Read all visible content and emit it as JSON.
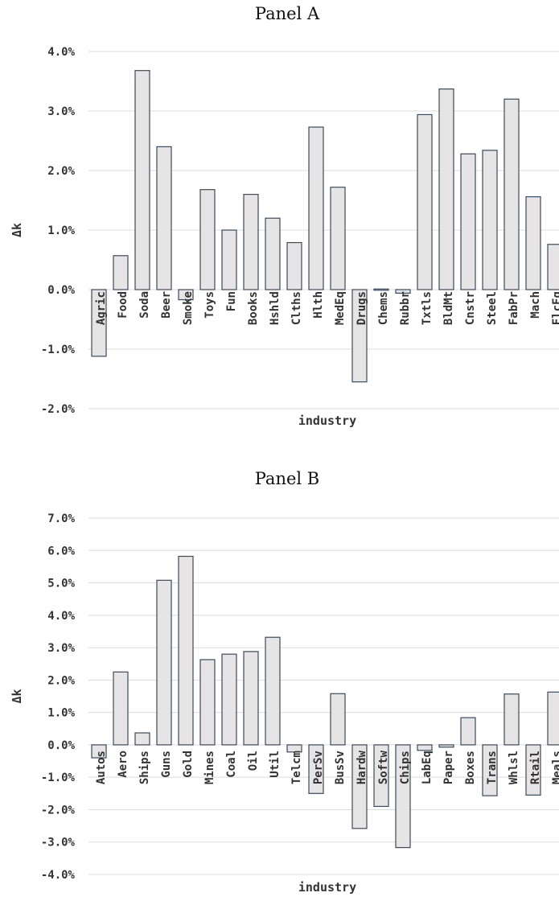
{
  "chart_data": [
    {
      "type": "bar",
      "title": "Panel A",
      "xlabel": "industry",
      "ylabel": "Δk",
      "ylim": [
        -2.0,
        4.0
      ],
      "yticks": [
        "4.0%",
        "3.0%",
        "2.0%",
        "1.0%",
        "0.0%",
        "-1.0%",
        "-2.0%"
      ],
      "grid": true,
      "categories": [
        "Agric",
        "Food",
        "Soda",
        "Beer",
        "Smoke",
        "Toys",
        "Fun",
        "Books",
        "Hshld",
        "Clths",
        "Hlth",
        "MedEq",
        "Drugs",
        "Chems",
        "Rubbr",
        "Txtls",
        "BldMt",
        "Cnstr",
        "Steel",
        "FabPr",
        "Mach",
        "ElcEq"
      ],
      "values": [
        -1.12,
        0.57,
        3.68,
        2.4,
        -0.17,
        1.68,
        1.0,
        1.6,
        1.2,
        0.79,
        2.73,
        1.72,
        -1.55,
        0.01,
        -0.06,
        2.94,
        3.37,
        2.28,
        2.34,
        3.2,
        1.56,
        0.76
      ]
    },
    {
      "type": "bar",
      "title": "Panel B",
      "xlabel": "industry",
      "ylabel": "Δk",
      "ylim": [
        -4.0,
        7.0
      ],
      "yticks": [
        "7.0%",
        "6.0%",
        "5.0%",
        "4.0%",
        "3.0%",
        "2.0%",
        "1.0%",
        "0.0%",
        "-1.0%",
        "-2.0%",
        "-3.0%",
        "-4.0%"
      ],
      "grid": true,
      "categories": [
        "Autos",
        "Aero",
        "Ships",
        "Guns",
        "Gold",
        "Mines",
        "Coal",
        "Oil",
        "Util",
        "Telcm",
        "PerSv",
        "BusSv",
        "Hardw",
        "Softw",
        "Chips",
        "LabEq",
        "Paper",
        "Boxes",
        "Trans",
        "Whlsl",
        "Rtail",
        "Meals"
      ],
      "values": [
        -0.4,
        2.25,
        0.37,
        5.08,
        5.82,
        2.63,
        2.8,
        2.88,
        3.32,
        -0.22,
        -1.5,
        1.58,
        -2.58,
        -1.9,
        -3.17,
        -0.17,
        -0.07,
        0.84,
        -1.57,
        1.57,
        -1.55,
        1.63
      ]
    }
  ]
}
